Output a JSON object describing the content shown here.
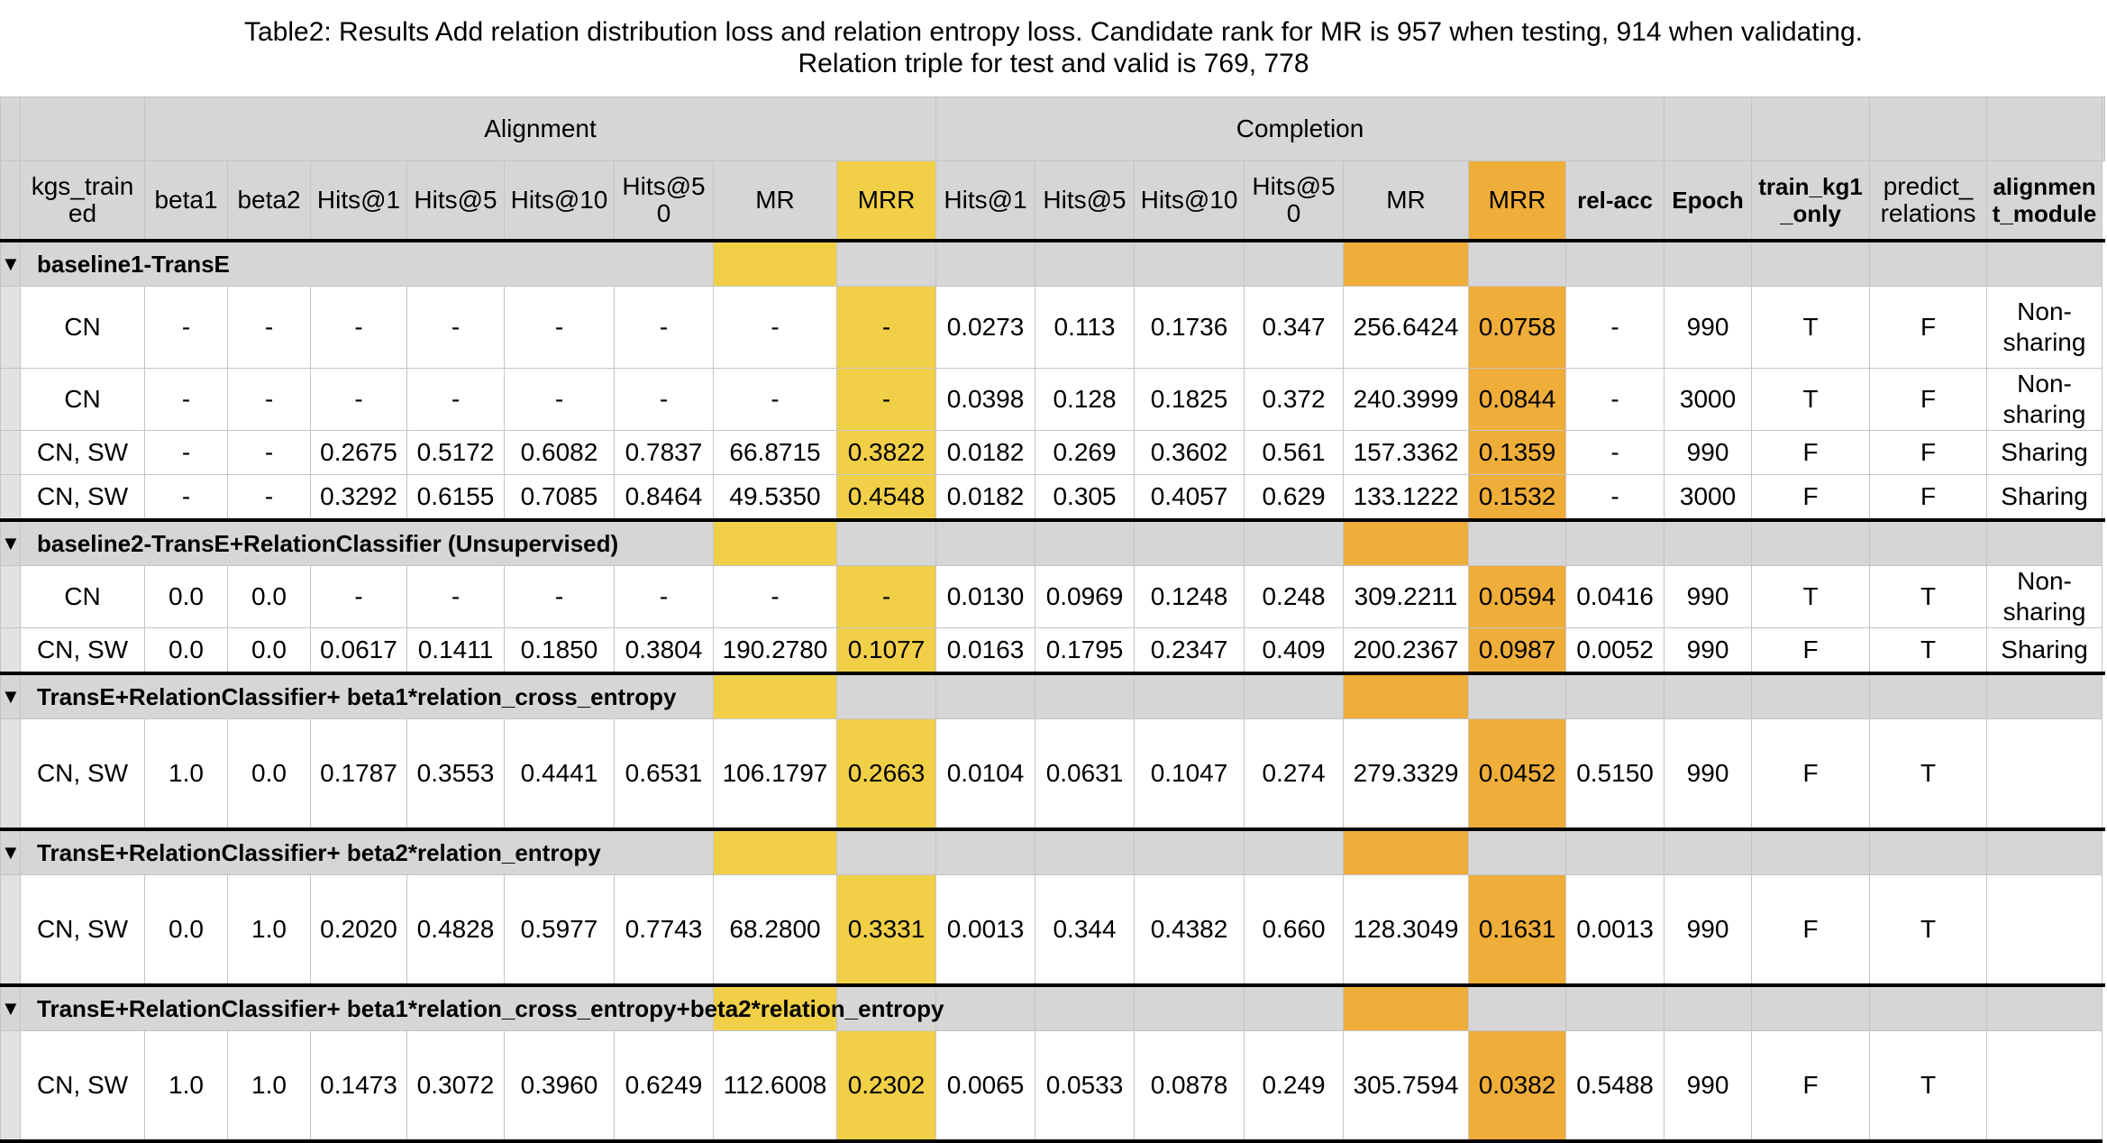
{
  "title": {
    "line1": "Table2: Results Add relation distribution loss and relation entropy loss. Candidate rank for MR is 957 when testing, 914 when validating.",
    "line2": "Relation triple for test and valid is 769, 778"
  },
  "groups": {
    "alignment": "Alignment",
    "completion": "Completion"
  },
  "headers": [
    "kgs_train ed",
    "beta1",
    "beta2",
    "Hits@1",
    "Hits@5",
    "Hits@10",
    "Hits@5 0",
    "MR",
    "MRR",
    "Hits@1",
    "Hits@5",
    "Hits@10",
    "Hits@5 0",
    "MR",
    "MRR",
    "rel-acc",
    "Epoch",
    "train_kg1 _only",
    "predict_ relations",
    "alignmen t_module"
  ],
  "collapse_icon": "triangle-down-icon",
  "colors": {
    "alignment_mrr": "#f1d048",
    "completion_mrr": "#efad3a",
    "header_gray": "#d5d6d5"
  },
  "sections": [
    {
      "label": "baseline1-TransE",
      "rows": [
        [
          "CN",
          "-",
          "-",
          "-",
          "-",
          "-",
          "-",
          "-",
          "-",
          "0.0273",
          "0.113",
          "0.1736",
          "0.347",
          "256.6424",
          "0.0758",
          "-",
          "990",
          "T",
          "F",
          "Non-sharing"
        ],
        [
          "CN",
          "-",
          "-",
          "-",
          "-",
          "-",
          "-",
          "-",
          "-",
          "0.0398",
          "0.128",
          "0.1825",
          "0.372",
          "240.3999",
          "0.0844",
          "-",
          "3000",
          "T",
          "F",
          "Non-sharing"
        ],
        [
          "CN, SW",
          "-",
          "-",
          "0.2675",
          "0.5172",
          "0.6082",
          "0.7837",
          "66.8715",
          "0.3822",
          "0.0182",
          "0.269",
          "0.3602",
          "0.561",
          "157.3362",
          "0.1359",
          "-",
          "990",
          "F",
          "F",
          "Sharing"
        ],
        [
          "CN, SW",
          "-",
          "-",
          "0.3292",
          "0.6155",
          "0.7085",
          "0.8464",
          "49.5350",
          "0.4548",
          "0.0182",
          "0.305",
          "0.4057",
          "0.629",
          "133.1222",
          "0.1532",
          "-",
          "3000",
          "F",
          "F",
          "Sharing"
        ]
      ]
    },
    {
      "label": "baseline2-TransE+RelationClassifier (Unsupervised)",
      "rows": [
        [
          "CN",
          "0.0",
          "0.0",
          "-",
          "-",
          "-",
          "-",
          "-",
          "-",
          "0.0130",
          "0.0969",
          "0.1248",
          "0.248",
          "309.2211",
          "0.0594",
          "0.0416",
          "990",
          "T",
          "T",
          "Non-sharing"
        ],
        [
          "CN, SW",
          "0.0",
          "0.0",
          "0.0617",
          "0.1411",
          "0.1850",
          "0.3804",
          "190.2780",
          "0.1077",
          "0.0163",
          "0.1795",
          "0.2347",
          "0.409",
          "200.2367",
          "0.0987",
          "0.0052",
          "990",
          "F",
          "T",
          "Sharing"
        ]
      ]
    },
    {
      "label": "TransE+RelationClassifier+ beta1*relation_cross_entropy",
      "rows": [
        [
          "CN, SW",
          "1.0",
          "0.0",
          "0.1787",
          "0.3553",
          "0.4441",
          "0.6531",
          "106.1797",
          "0.2663",
          "0.0104",
          "0.0631",
          "0.1047",
          "0.274",
          "279.3329",
          "0.0452",
          "0.5150",
          "990",
          "F",
          "T",
          ""
        ]
      ]
    },
    {
      "label": "TransE+RelationClassifier+ beta2*relation_entropy",
      "rows": [
        [
          "CN, SW",
          "0.0",
          "1.0",
          "0.2020",
          "0.4828",
          "0.5977",
          "0.7743",
          "68.2800",
          "0.3331",
          "0.0013",
          "0.344",
          "0.4382",
          "0.660",
          "128.3049",
          "0.1631",
          "0.0013",
          "990",
          "F",
          "T",
          ""
        ]
      ]
    },
    {
      "label": "TransE+RelationClassifier+ beta1*relation_cross_entropy+beta2*relation_entropy",
      "rows": [
        [
          "CN, SW",
          "1.0",
          "1.0",
          "0.1473",
          "0.3072",
          "0.3960",
          "0.6249",
          "112.6008",
          "0.2302",
          "0.0065",
          "0.0533",
          "0.0878",
          "0.249",
          "305.7594",
          "0.0382",
          "0.5488",
          "990",
          "F",
          "T",
          ""
        ]
      ]
    }
  ]
}
